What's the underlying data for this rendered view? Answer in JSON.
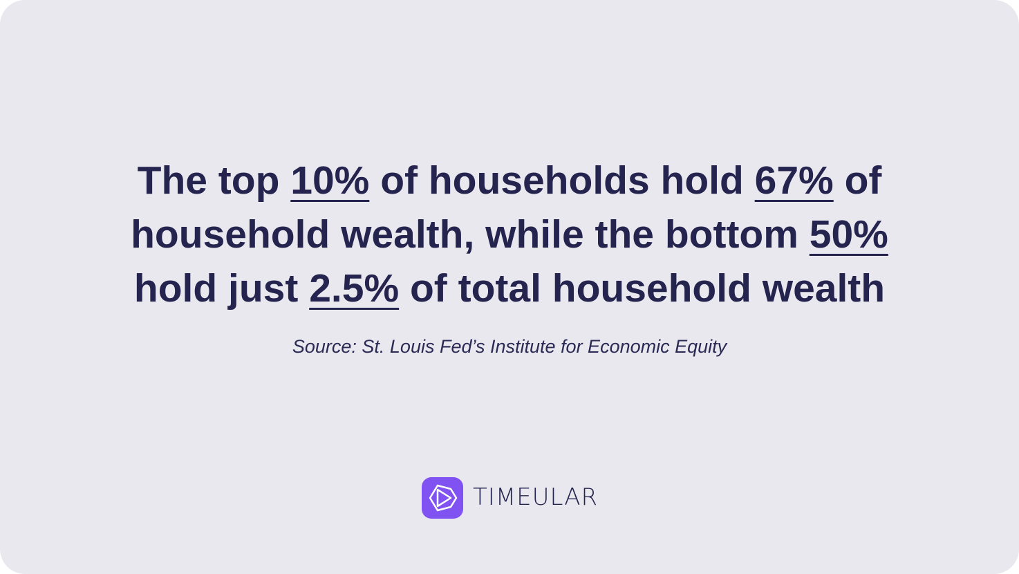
{
  "headline": {
    "lines": [
      [
        {
          "text": "The top "
        },
        {
          "text": "10%",
          "underline": true
        },
        {
          "text": " of households hold "
        },
        {
          "text": "67%",
          "underline": true
        },
        {
          "text": " of"
        }
      ],
      [
        {
          "text": "household wealth, while the bottom "
        },
        {
          "text": "50%",
          "underline": true
        }
      ],
      [
        {
          "text": "hold just "
        },
        {
          "text": "2.5%",
          "underline": true
        },
        {
          "text": " of total household wealth"
        }
      ]
    ]
  },
  "source": "Source: St. Louis Fed’s Institute for Economic Equity",
  "logo": {
    "text": "TIMEULAR"
  }
}
